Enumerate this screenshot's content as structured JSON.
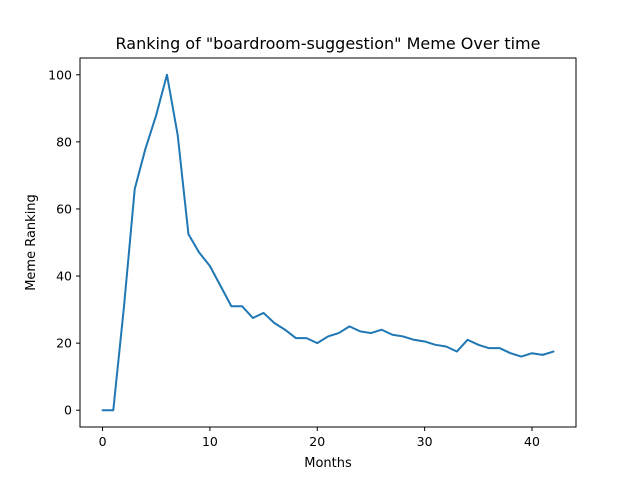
{
  "chart_data": {
    "type": "line",
    "title": "Ranking of \"boardroom-suggestion\" Meme Over time",
    "xlabel": "Months",
    "ylabel": "Meme Ranking",
    "xlim": [
      -2.1,
      44.1
    ],
    "ylim": [
      -5,
      105
    ],
    "xticks": [
      0,
      10,
      20,
      30,
      40
    ],
    "yticks": [
      0,
      20,
      40,
      60,
      80,
      100
    ],
    "grid": false,
    "legend": "none",
    "series": [
      {
        "color": "#1f77b4",
        "x": [
          0,
          1,
          2,
          3,
          4,
          5,
          6,
          7,
          8,
          9,
          10,
          11,
          12,
          13,
          14,
          15,
          16,
          17,
          18,
          19,
          20,
          21,
          22,
          23,
          24,
          25,
          26,
          27,
          28,
          29,
          30,
          31,
          32,
          33,
          34,
          35,
          36,
          37,
          38,
          39,
          40,
          41,
          42
        ],
        "y": [
          0,
          0,
          31,
          66,
          78,
          88,
          100,
          82,
          52.5,
          47,
          43,
          37,
          31,
          31,
          27.5,
          29,
          26,
          24,
          21.5,
          21.5,
          20,
          22,
          23,
          25,
          23.5,
          23,
          24,
          22.5,
          22,
          21,
          20.5,
          19.5,
          19,
          17.5,
          21,
          19.5,
          18.5,
          18.5,
          17,
          16,
          17,
          16.5,
          17.5
        ]
      }
    ]
  }
}
